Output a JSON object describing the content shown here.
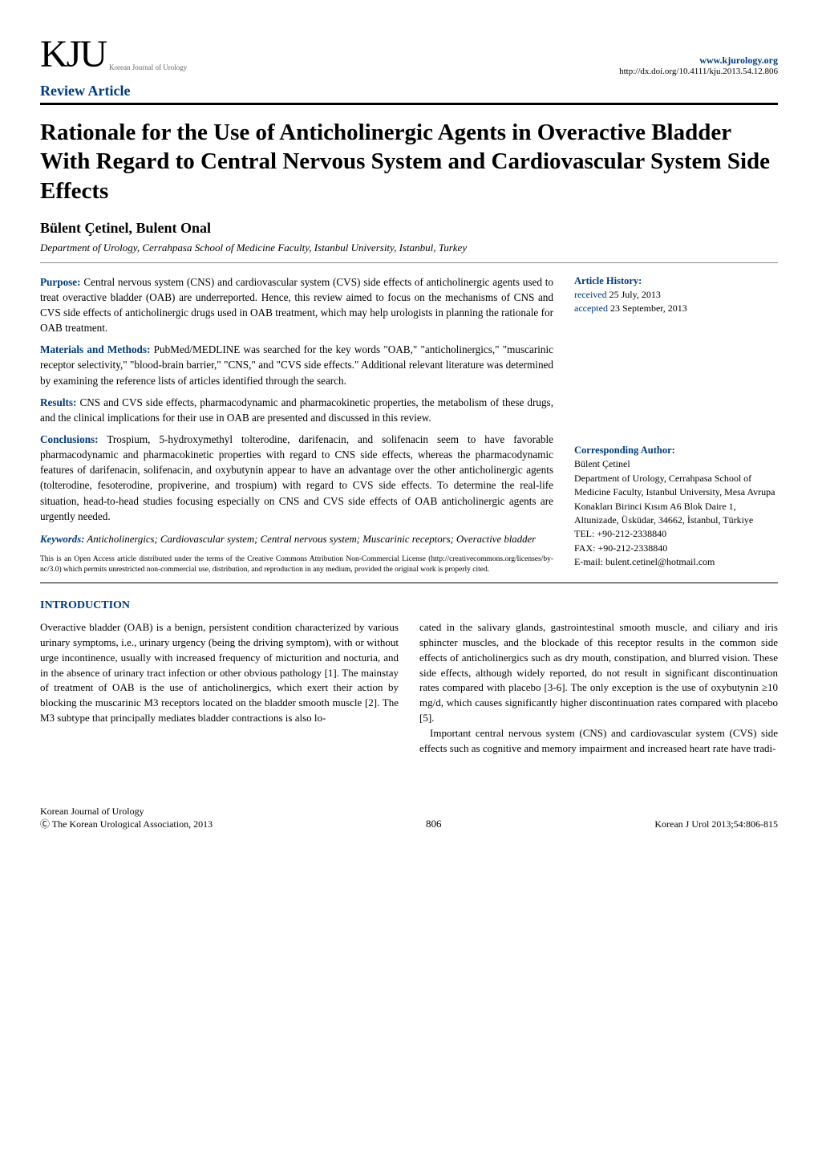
{
  "header": {
    "logo_main": "KJU",
    "logo_sub": "Korean Journal of Urology",
    "site_url": "www.kjurology.org",
    "doi": "http://dx.doi.org/10.4111/kju.2013.54.12.806",
    "section_label": "Review Article"
  },
  "title": "Rationale for the Use of Anticholinergic Agents in Overactive Bladder With Regard to Central Nervous System and Cardiovascular System Side Effects",
  "authors": "Bülent Çetinel, Bulent Onal",
  "affiliation": "Department of Urology, Cerrahpasa School of Medicine Faculty, Istanbul University, Istanbul, Turkey",
  "abstract": {
    "purpose": {
      "label": "Purpose:",
      "text": " Central nervous system (CNS) and cardiovascular system (CVS) side effects of anticholinergic agents used to treat overactive bladder (OAB) are underreported. Hence, this review aimed to focus on the mechanisms of CNS and CVS side effects of anticholinergic drugs used in OAB treatment, which may help urologists in planning the rationale for OAB treatment."
    },
    "methods": {
      "label": "Materials and Methods:",
      "text": " PubMed/MEDLINE was searched for the key words \"OAB,\" \"anticholinergics,\" \"muscarinic receptor selectivity,\" \"blood-brain barrier,\" \"CNS,\" and \"CVS side effects.\" Additional relevant literature was determined by examining the reference lists of articles identified through the search."
    },
    "results": {
      "label": "Results:",
      "text": " CNS and CVS side effects, pharmacodynamic and pharmacokinetic properties, the metabolism of these drugs, and the clinical implications for their use in OAB are presented and discussed in this review."
    },
    "conclusions": {
      "label": "Conclusions:",
      "text": " Trospium, 5-hydroxymethyl tolterodine, darifenacin, and solifenacin seem to have favorable pharmacodynamic and pharmacokinetic properties with regard to CNS side effects, whereas the pharmacodynamic features of darifenacin, solifenacin, and oxybutynin appear to have an advantage over the other anticholinergic agents (tolterodine, fesoterodine, propiverine, and trospium) with regard to CVS side effects. To determine the real-life situation, head-to-head studies focusing especially on CNS and CVS side effects of OAB anticholinergic agents are urgently needed."
    }
  },
  "keywords": {
    "label": "Keywords:",
    "text": " Anticholinergics; Cardiovascular system; Central nervous system; Muscarinic receptors; Overactive bladder"
  },
  "license": "This is an Open Access article distributed under the terms of the Creative Commons Attribution Non-Commercial License (http://creativecommons.org/licenses/by-nc/3.0) which permits unrestricted non-commercial use, distribution, and reproduction in any medium, provided the original work is properly cited.",
  "history": {
    "label": "Article History:",
    "received_label": "received",
    "received_date": " 25 July, 2013",
    "accepted_label": "accepted",
    "accepted_date": " 23 September, 2013"
  },
  "corresponding": {
    "label": "Corresponding Author:",
    "name": "Bülent Çetinel",
    "address": "Department of Urology, Cerrahpasa School of Medicine Faculty, Istanbul University, Mesa Avrupa Konakları Birinci Kısım A6 Blok Daire 1, Altunizade, Üsküdar, 34662, İstanbul, Türkiye",
    "tel_label": "TEL: ",
    "tel": "+90-212-2338840",
    "fax_label": "FAX: ",
    "fax": "+90-212-2338840",
    "email_label": "E-mail: ",
    "email": "bulent.cetinel@hotmail.com"
  },
  "body": {
    "intro_label": "INTRODUCTION",
    "col1_p1": "Overactive bladder (OAB) is a benign, persistent condition characterized by various urinary symptoms, i.e., urinary urgency (being the driving symptom), with or without urge incontinence, usually with increased frequency of micturition and nocturia, and in the absence of urinary tract infection or other obvious pathology [1]. The mainstay of treatment of OAB is the use of anticholinergics, which exert their action by blocking the muscarinic M3 receptors located on the bladder smooth muscle [2]. The M3 subtype that principally mediates bladder contractions is also lo-",
    "col2_p1": "cated in the salivary glands, gastrointestinal smooth muscle, and ciliary and iris sphincter muscles, and the blockade of this receptor results in the common side effects of anticholinergics such as dry mouth, constipation, and blurred vision. These side effects, although widely reported, do not result in significant discontinuation rates compared with placebo [3-6]. The only exception is the use of oxybutynin ≥10 mg/d, which causes significantly higher discontinuation rates compared with placebo [5].",
    "col2_p2": "Important central nervous system (CNS) and cardiovascular system (CVS) side effects such as cognitive and memory impairment and increased heart rate have tradi-"
  },
  "footer": {
    "left_line1": "Korean Journal of Urology",
    "left_line2": "Ⓒ The Korean Urological Association, 2013",
    "page_number": "806",
    "right": "Korean J Urol 2013;54:806-815"
  },
  "colors": {
    "brand_blue": "#003a79",
    "text": "#000000",
    "bg": "#ffffff"
  }
}
